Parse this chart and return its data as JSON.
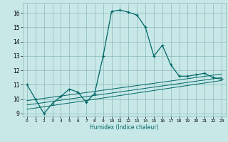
{
  "xlabel": "Humidex (Indice chaleur)",
  "background_color": "#c8e8e8",
  "grid_color": "#8ab8b8",
  "line_color": "#006666",
  "main_x": [
    0,
    1,
    2,
    3,
    4,
    5,
    6,
    7,
    8,
    9,
    10,
    11,
    12,
    13,
    14,
    15,
    16,
    17,
    18,
    19,
    20,
    21,
    22,
    23
  ],
  "main_y": [
    11,
    10,
    9,
    9.7,
    10.2,
    10.7,
    10.5,
    9.8,
    10.4,
    13.0,
    16.1,
    16.2,
    16.05,
    15.85,
    15.0,
    13.0,
    13.75,
    12.4,
    11.6,
    11.6,
    11.7,
    11.8,
    11.5,
    11.4
  ],
  "line1_x": [
    0,
    23
  ],
  "line1_y": [
    9.3,
    11.3
  ],
  "line2_x": [
    0,
    23
  ],
  "line2_y": [
    9.6,
    11.5
  ],
  "line3_x": [
    0,
    23
  ],
  "line3_y": [
    9.9,
    11.75
  ],
  "xlim": [
    -0.5,
    23.5
  ],
  "ylim": [
    8.8,
    16.7
  ],
  "yticks": [
    9,
    10,
    11,
    12,
    13,
    14,
    15,
    16
  ],
  "xticks": [
    0,
    1,
    2,
    3,
    4,
    5,
    6,
    7,
    8,
    9,
    10,
    11,
    12,
    13,
    14,
    15,
    16,
    17,
    18,
    19,
    20,
    21,
    22,
    23
  ]
}
